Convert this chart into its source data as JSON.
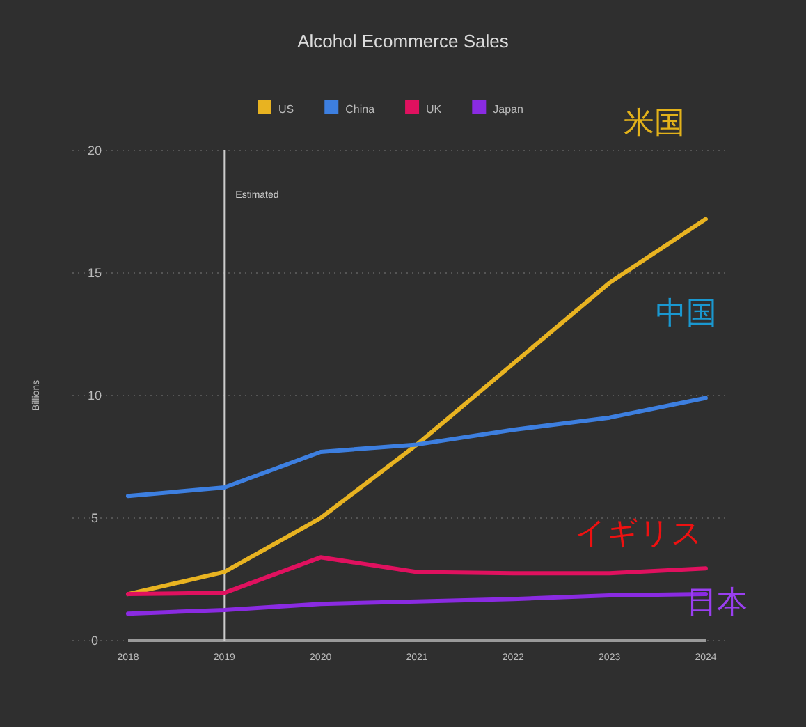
{
  "chart_data": {
    "type": "line",
    "title": "Alcohol Ecommerce Sales",
    "ylabel": "Billions",
    "x": [
      2018,
      2019,
      2020,
      2021,
      2022,
      2023,
      2024
    ],
    "series": [
      {
        "name": "US",
        "color": "#e8b321",
        "values": [
          1.9,
          2.8,
          5.0,
          8.0,
          11.3,
          14.6,
          17.2
        ]
      },
      {
        "name": "China",
        "color": "#3d7fe0",
        "values": [
          5.9,
          6.25,
          7.7,
          8.0,
          8.6,
          9.1,
          9.9
        ]
      },
      {
        "name": "UK",
        "color": "#e0115f",
        "values": [
          1.9,
          1.95,
          3.4,
          2.8,
          2.75,
          2.75,
          2.95
        ]
      },
      {
        "name": "Japan",
        "color": "#8a2be2",
        "values": [
          1.1,
          1.25,
          1.5,
          1.6,
          1.7,
          1.85,
          1.9
        ]
      }
    ],
    "xlim": [
      2018,
      2024
    ],
    "ylim": [
      0,
      20
    ],
    "xticks": [
      2018,
      2019,
      2020,
      2021,
      2022,
      2023,
      2024
    ],
    "yticks": [
      0,
      5,
      10,
      15,
      20
    ],
    "grid": "y",
    "legend": "top",
    "marker": "none",
    "line_style": "solid",
    "ref_lines": [
      {
        "axis": "x",
        "value": 2019,
        "label": "Estimated",
        "color": "#cccccc"
      }
    ],
    "annotations": [
      "米国",
      "中国",
      "イギリス",
      "日本"
    ]
  }
}
